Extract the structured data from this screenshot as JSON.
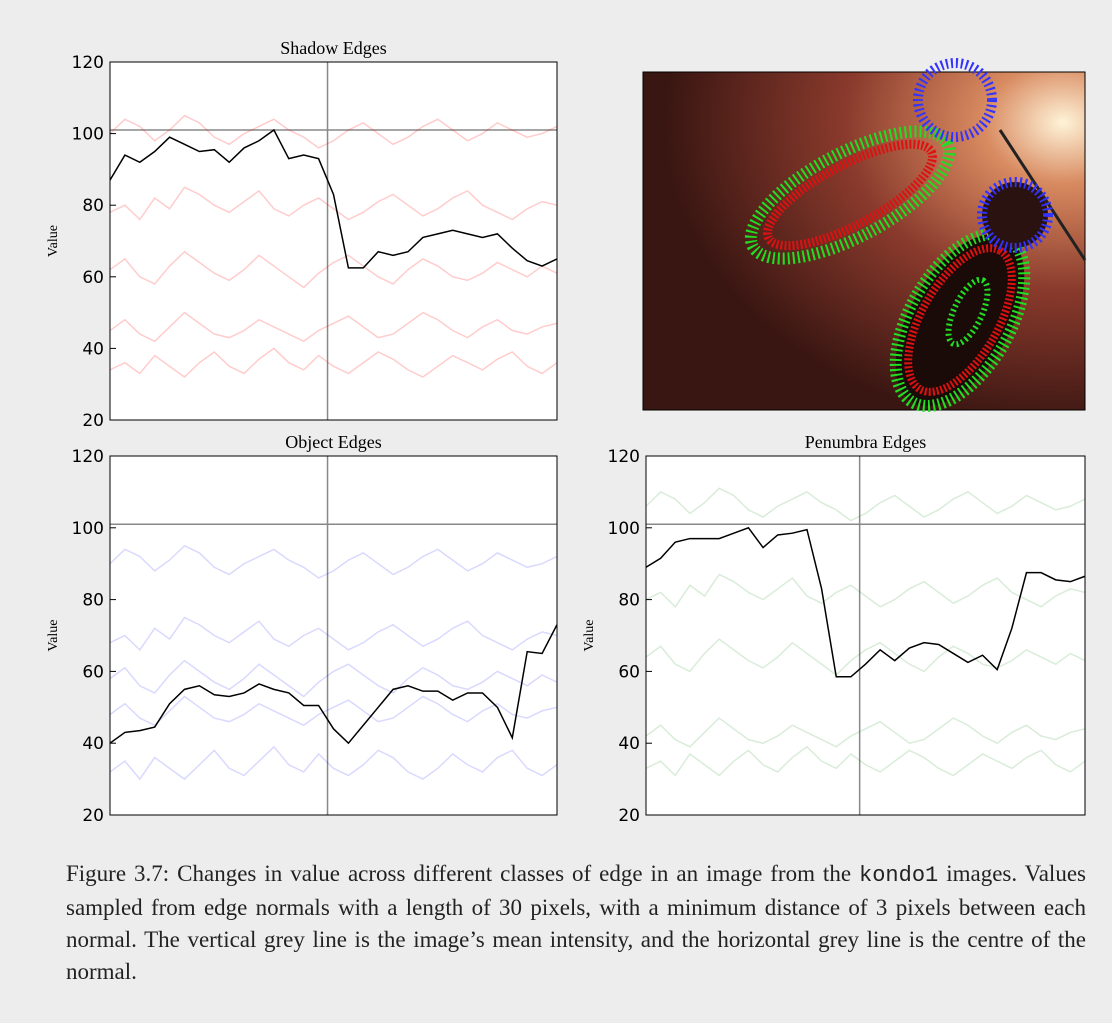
{
  "chart_data": [
    {
      "type": "line",
      "title": "Shadow Edges",
      "ylabel": "Value",
      "x": [
        0,
        1,
        2,
        3,
        4,
        5,
        6,
        7,
        8,
        9,
        10,
        11,
        12,
        13,
        14,
        15,
        16,
        17,
        18,
        19,
        20,
        21,
        22,
        23,
        24,
        25,
        26,
        27,
        28,
        29,
        30
      ],
      "xlim": [
        0,
        30
      ],
      "ylim": [
        20,
        120
      ],
      "yticks": [
        20,
        40,
        60,
        80,
        100,
        120
      ],
      "hline": 101,
      "vline": 14.6,
      "series": [
        {
          "color": "#ff0000",
          "opacity": 0.2,
          "values": [
            78,
            80,
            76,
            82,
            79,
            85,
            83,
            80,
            78,
            81,
            84,
            79,
            77,
            80,
            82,
            79,
            76,
            78,
            81,
            83,
            80,
            77,
            79,
            82,
            84,
            80,
            78,
            76,
            79,
            81,
            80
          ]
        },
        {
          "color": "#ff0000",
          "opacity": 0.2,
          "values": [
            45,
            48,
            44,
            42,
            46,
            50,
            47,
            44,
            43,
            45,
            48,
            46,
            44,
            42,
            45,
            47,
            49,
            46,
            43,
            44,
            47,
            50,
            48,
            45,
            43,
            46,
            48,
            45,
            44,
            46,
            47
          ]
        },
        {
          "color": "#ff0000",
          "opacity": 0.2,
          "values": [
            100,
            104,
            102,
            98,
            101,
            105,
            103,
            99,
            97,
            100,
            102,
            104,
            101,
            99,
            96,
            98,
            101,
            103,
            100,
            97,
            99,
            102,
            104,
            101,
            98,
            100,
            103,
            101,
            99,
            100,
            102
          ]
        },
        {
          "color": "#ff0000",
          "opacity": 0.2,
          "values": [
            62,
            65,
            60,
            58,
            63,
            67,
            64,
            61,
            59,
            62,
            66,
            63,
            60,
            57,
            61,
            64,
            66,
            63,
            60,
            58,
            62,
            65,
            63,
            60,
            59,
            61,
            64,
            62,
            60,
            63,
            61
          ]
        },
        {
          "color": "#ff0000",
          "opacity": 0.2,
          "values": [
            34,
            36,
            33,
            38,
            35,
            32,
            36,
            39,
            35,
            33,
            37,
            40,
            36,
            34,
            38,
            35,
            33,
            36,
            39,
            37,
            34,
            32,
            35,
            38,
            36,
            34,
            37,
            39,
            35,
            33,
            36
          ]
        },
        {
          "color": "#000000",
          "opacity": 1,
          "values": [
            87,
            94,
            92,
            95,
            99,
            97,
            95,
            95.5,
            92,
            96,
            98,
            101,
            93,
            94,
            93,
            83,
            62.5,
            62.5,
            67,
            66,
            67,
            71,
            72,
            73,
            72,
            71,
            72,
            68,
            64.5,
            63,
            65
          ]
        }
      ]
    },
    {
      "type": "line",
      "title": "Object Edges",
      "ylabel": "Value",
      "x": [
        0,
        1,
        2,
        3,
        4,
        5,
        6,
        7,
        8,
        9,
        10,
        11,
        12,
        13,
        14,
        15,
        16,
        17,
        18,
        19,
        20,
        21,
        22,
        23,
        24,
        25,
        26,
        27,
        28,
        29,
        30
      ],
      "xlim": [
        0,
        30
      ],
      "ylim": [
        20,
        120
      ],
      "yticks": [
        20,
        40,
        60,
        80,
        100,
        120
      ],
      "hline": 101,
      "vline": 14.6,
      "series": [
        {
          "color": "#0000ff",
          "opacity": 0.15,
          "values": [
            68,
            70,
            66,
            72,
            69,
            75,
            73,
            70,
            68,
            71,
            74,
            69,
            67,
            70,
            72,
            69,
            66,
            68,
            71,
            73,
            70,
            67,
            69,
            72,
            74,
            70,
            68,
            66,
            69,
            71,
            70
          ]
        },
        {
          "color": "#0000ff",
          "opacity": 0.15,
          "values": [
            48,
            51,
            47,
            45,
            49,
            53,
            50,
            47,
            46,
            48,
            51,
            49,
            47,
            45,
            48,
            50,
            52,
            49,
            46,
            47,
            50,
            53,
            51,
            48,
            46,
            49,
            51,
            48,
            47,
            49,
            50
          ]
        },
        {
          "color": "#0000ff",
          "opacity": 0.15,
          "values": [
            90,
            94,
            92,
            88,
            91,
            95,
            93,
            89,
            87,
            90,
            92,
            94,
            91,
            89,
            86,
            88,
            91,
            93,
            90,
            87,
            89,
            92,
            94,
            91,
            88,
            90,
            93,
            91,
            89,
            90,
            92
          ]
        },
        {
          "color": "#0000ff",
          "opacity": 0.15,
          "values": [
            58,
            61,
            56,
            54,
            59,
            63,
            60,
            57,
            55,
            58,
            62,
            59,
            56,
            53,
            57,
            60,
            62,
            59,
            56,
            54,
            58,
            61,
            59,
            56,
            55,
            57,
            60,
            58,
            56,
            59,
            57
          ]
        },
        {
          "color": "#0000ff",
          "opacity": 0.15,
          "values": [
            32,
            35,
            30,
            36,
            33,
            30,
            34,
            38,
            33,
            31,
            35,
            39,
            34,
            32,
            37,
            33,
            31,
            34,
            38,
            36,
            32,
            30,
            33,
            37,
            34,
            32,
            36,
            38,
            33,
            31,
            34
          ]
        },
        {
          "color": "#000000",
          "opacity": 1,
          "values": [
            40,
            43,
            43.5,
            44.5,
            51,
            55,
            56,
            53.5,
            53,
            54,
            56.5,
            55,
            54,
            50.5,
            50.5,
            44,
            40,
            45,
            50,
            55,
            56,
            54.5,
            54.5,
            52,
            54,
            54,
            50,
            41.5,
            65.5,
            65,
            73
          ]
        }
      ]
    },
    {
      "type": "line",
      "title": "Penumbra Edges",
      "ylabel": "Value",
      "x": [
        0,
        1,
        2,
        3,
        4,
        5,
        6,
        7,
        8,
        9,
        10,
        11,
        12,
        13,
        14,
        15,
        16,
        17,
        18,
        19,
        20,
        21,
        22,
        23,
        24,
        25,
        26,
        27,
        28,
        29,
        30
      ],
      "xlim": [
        0,
        30
      ],
      "ylim": [
        20,
        120
      ],
      "yticks": [
        20,
        40,
        60,
        80,
        100,
        120
      ],
      "hline": 101,
      "vline": 14.6,
      "series": [
        {
          "color": "#008000",
          "opacity": 0.15,
          "values": [
            80,
            82,
            78,
            84,
            81,
            87,
            85,
            82,
            80,
            83,
            86,
            81,
            79,
            82,
            84,
            81,
            78,
            80,
            83,
            85,
            82,
            79,
            81,
            84,
            86,
            82,
            80,
            78,
            81,
            83,
            82
          ]
        },
        {
          "color": "#008000",
          "opacity": 0.15,
          "values": [
            42,
            45,
            41,
            39,
            43,
            47,
            44,
            41,
            40,
            42,
            45,
            43,
            41,
            39,
            42,
            44,
            46,
            43,
            40,
            41,
            44,
            47,
            45,
            42,
            40,
            43,
            45,
            42,
            41,
            43,
            44
          ]
        },
        {
          "color": "#008000",
          "opacity": 0.15,
          "values": [
            106,
            110,
            108,
            104,
            107,
            111,
            109,
            105,
            103,
            106,
            108,
            110,
            107,
            105,
            102,
            104,
            107,
            109,
            106,
            103,
            105,
            108,
            110,
            107,
            104,
            106,
            109,
            107,
            105,
            106,
            108
          ]
        },
        {
          "color": "#008000",
          "opacity": 0.15,
          "values": [
            64,
            67,
            62,
            60,
            65,
            69,
            66,
            63,
            61,
            64,
            68,
            65,
            62,
            59,
            63,
            66,
            68,
            65,
            62,
            60,
            64,
            67,
            65,
            62,
            61,
            63,
            66,
            64,
            62,
            65,
            63
          ]
        },
        {
          "color": "#008000",
          "opacity": 0.15,
          "values": [
            33,
            35,
            31,
            37,
            34,
            31,
            35,
            38,
            34,
            32,
            36,
            39,
            35,
            33,
            37,
            34,
            32,
            35,
            38,
            36,
            33,
            31,
            34,
            37,
            35,
            33,
            36,
            38,
            34,
            32,
            35
          ]
        },
        {
          "color": "#000000",
          "opacity": 1,
          "values": [
            89,
            91.5,
            96,
            97,
            97,
            97,
            98.5,
            100,
            94.5,
            98,
            98.5,
            99.5,
            83,
            58.5,
            58.5,
            62,
            66,
            63,
            66.5,
            68,
            67.5,
            65,
            62.5,
            64.5,
            60.5,
            72,
            87.5,
            87.5,
            85.5,
            85,
            86.5
          ]
        }
      ]
    }
  ],
  "caption": {
    "before": "Figure 3.7: Changes in value across different classes of edge in an image from the ",
    "code": "kondo1",
    "after": " images. Values sampled from edge normals with a length of 30 pixels, with a minimum distance of 3 pixels between each normal. The vertical grey line is the image’s mean intensity, and the horizontal grey line is the centre of the normal."
  }
}
